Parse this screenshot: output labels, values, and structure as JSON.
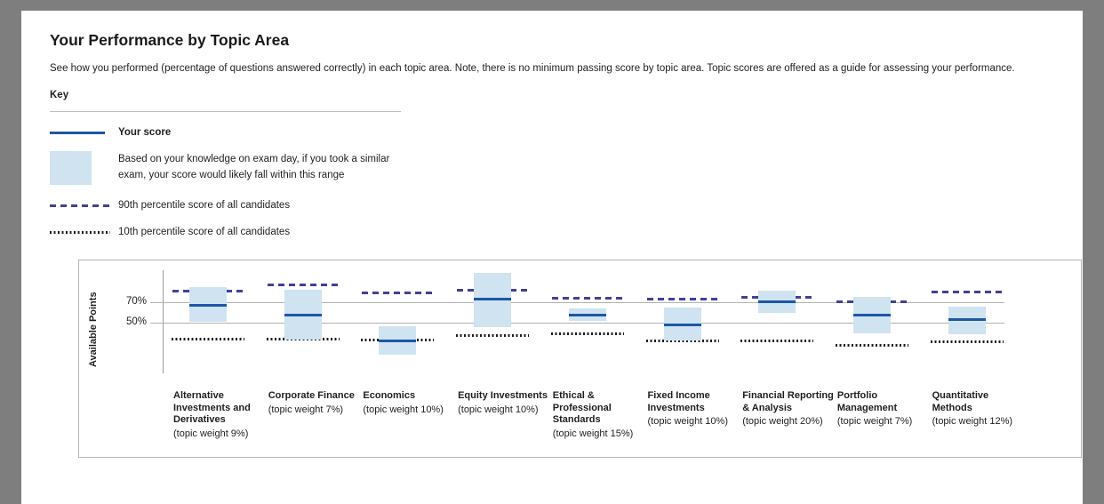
{
  "page": {
    "title": "Your Performance by Topic Area",
    "description": "See how you performed (percentage of questions answered correctly) in each topic area. Note, there is no minimum passing score by topic area. Topic scores are offered as a guide for assessing your performance."
  },
  "key": {
    "heading": "Key",
    "items": [
      {
        "symbol": "score-line",
        "label": "Your score"
      },
      {
        "symbol": "range-box",
        "label": "Based on your knowledge on exam day, if you took a similar exam, your score would likely fall within this range"
      },
      {
        "symbol": "dashed-line",
        "label": "90th percentile score of all candidates"
      },
      {
        "symbol": "dotted-line",
        "label": "10th percentile score of all candidates"
      }
    ]
  },
  "chart_data": {
    "type": "boxplot",
    "title": "",
    "xlabel": "",
    "ylabel": "Available Points",
    "ylim": [
      0,
      100
    ],
    "yticks": [
      70,
      50
    ],
    "ytick_labels": [
      "70%",
      "50%"
    ],
    "grid": "horizontal gridlines at 70% and 50% only",
    "legend_position": "key section above chart",
    "categories": [
      "Alternative Investments and Derivatives",
      "Corporate Finance",
      "Economics",
      "Equity Investments",
      "Ethical & Professional Standards",
      "Fixed Income Investments",
      "Financial Reporting & Analysis",
      "Portfolio Management",
      "Quantitative Methods"
    ],
    "series": [
      {
        "name": "Alternative Investments and Derivatives",
        "weight": "(topic weight 9%)",
        "score": 68,
        "range_low": 51,
        "range_high": 85,
        "p90": 82,
        "p10": 35
      },
      {
        "name": "Corporate Finance",
        "weight": "(topic weight 7%)",
        "score": 58,
        "range_low": 34,
        "range_high": 83,
        "p90": 88,
        "p10": 35
      },
      {
        "name": "Economics",
        "weight": "(topic weight 10%)",
        "score": 33,
        "range_low": 19,
        "range_high": 47,
        "p90": 80,
        "p10": 34
      },
      {
        "name": "Equity Investments",
        "weight": "(topic weight 10%)",
        "score": 74,
        "range_low": 46,
        "range_high": 99,
        "p90": 83,
        "p10": 38
      },
      {
        "name": "Ethical & Professional Standards",
        "weight": "(topic weight 15%)",
        "score": 58,
        "range_low": 52,
        "range_high": 64,
        "p90": 75,
        "p10": 40
      },
      {
        "name": "Fixed Income Investments",
        "weight": "(topic weight 10%)",
        "score": 49,
        "range_low": 33,
        "range_high": 65,
        "p90": 74,
        "p10": 33
      },
      {
        "name": "Financial Reporting & Analysis",
        "weight": "(topic weight 20%)",
        "score": 71,
        "range_low": 60,
        "range_high": 82,
        "p90": 76,
        "p10": 33
      },
      {
        "name": "Portfolio Management",
        "weight": "(topic weight 7%)",
        "score": 58,
        "range_low": 40,
        "range_high": 76,
        "p90": 71,
        "p10": 29
      },
      {
        "name": "Quantitative Methods",
        "weight": "(topic weight 12%)",
        "score": 54,
        "range_low": 39,
        "range_high": 66,
        "p90": 81,
        "p10": 32
      }
    ],
    "colors": {
      "score_line": "#1d57a5",
      "range_band": "#cfe3f1",
      "p90_dashed": "#414196",
      "p10_dotted": "#1c1c1c",
      "gridline": "#b2b2b2",
      "frame_gray": "#7e7e7e"
    }
  }
}
